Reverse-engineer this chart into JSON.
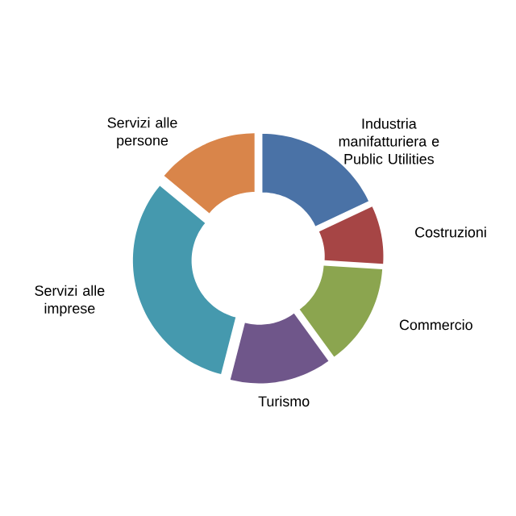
{
  "chart_data": {
    "type": "donut",
    "categories": [
      "Industria manifatturiera e Public Utilities",
      "Costruzioni",
      "Commercio",
      "Turismo",
      "Servizi alle imprese",
      "Servizi alle persone"
    ],
    "values": [
      18,
      8,
      14,
      14,
      32,
      14
    ],
    "colors": [
      "#4a72a6",
      "#a64545",
      "#8ba54f",
      "#6f568a",
      "#4599ae",
      "#d9854a"
    ]
  }
}
